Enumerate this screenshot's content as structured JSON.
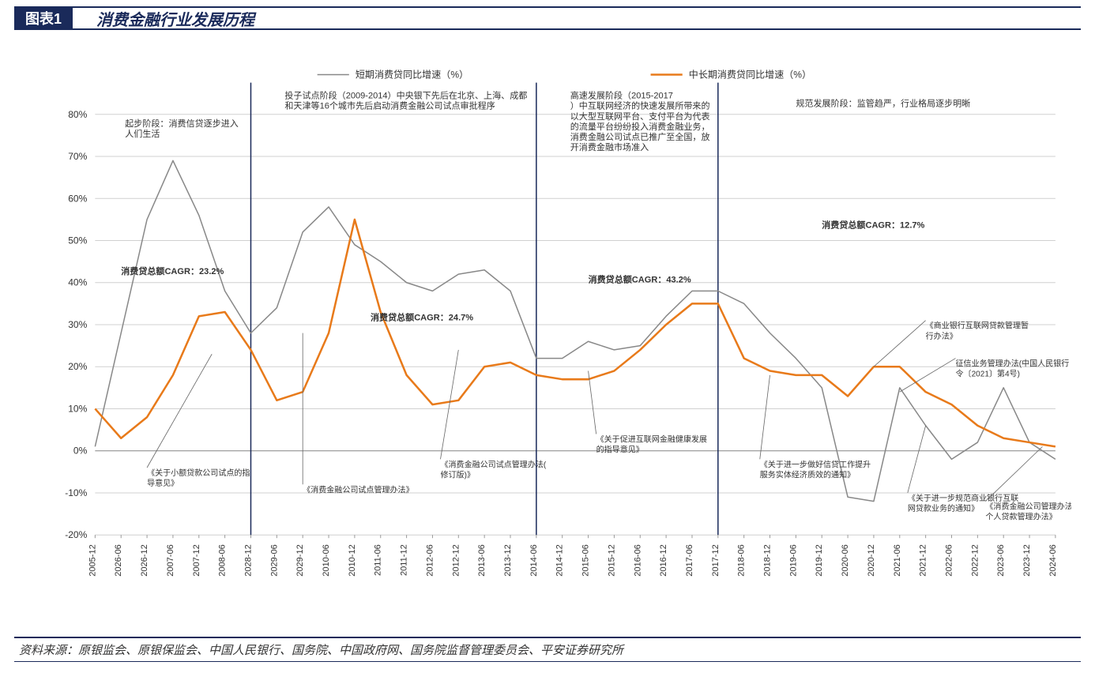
{
  "header": {
    "label": "图表1",
    "title": "消费金融行业发展历程"
  },
  "footer": {
    "source_prefix": "资料来源：",
    "sources": "原银监会、原银保监会、中国人民银行、国务院、中国政府网、国务院监督管理委员会、平安证券研究所"
  },
  "legend": {
    "series1": "短期消费贷同比增速（%）",
    "series2": "中长期消费贷同比增速（%）"
  },
  "chart": {
    "type": "line",
    "ylim": [
      -20,
      80
    ],
    "ytick_step": 10,
    "yticks": [
      "-20%",
      "-10%",
      "0%",
      "10%",
      "20%",
      "30%",
      "40%",
      "50%",
      "60%",
      "70%",
      "80%"
    ],
    "xlabels": [
      "2005-12",
      "2026-06",
      "2026-12",
      "2007-06",
      "2007-12",
      "2008-06",
      "2028-12",
      "2029-06",
      "2029-12",
      "2010-06",
      "2010-12",
      "2011-06",
      "2011-12",
      "2012-06",
      "2012-12",
      "2013-06",
      "2013-12",
      "2014-06",
      "2014-12",
      "2015-06",
      "2015-12",
      "2016-06",
      "2016-12",
      "2017-06",
      "2017-12",
      "2018-06",
      "2018-12",
      "2019-06",
      "2019-12",
      "2020-06",
      "2020-12",
      "2021-06",
      "2021-12",
      "2022-06",
      "2022-12",
      "2023-06",
      "2023-12",
      "2024-06"
    ],
    "series1": {
      "color": "#888888",
      "width": 1.5,
      "values": [
        1,
        28,
        55,
        69,
        56,
        38,
        28,
        34,
        52,
        58,
        49,
        45,
        40,
        38,
        42,
        43,
        38,
        22,
        22,
        26,
        24,
        25,
        32,
        38,
        38,
        35,
        28,
        22,
        15,
        -11,
        -12,
        15,
        6,
        -2,
        2,
        15,
        2,
        -2
      ]
    },
    "series2": {
      "color": "#e87a1a",
      "width": 2.5,
      "values": [
        10,
        3,
        8,
        18,
        32,
        33,
        24,
        12,
        14,
        28,
        55,
        33,
        18,
        11,
        12,
        20,
        21,
        18,
        17,
        17,
        19,
        24,
        30,
        35,
        35,
        22,
        19,
        18,
        18,
        13,
        20,
        20,
        14,
        11,
        6,
        3,
        2,
        1
      ]
    },
    "dividers": [
      6,
      17,
      24
    ],
    "divider_color": "#1a2a5a",
    "grid_color": "#d0d0d0",
    "background": "#ffffff"
  },
  "annotations": {
    "phase1": {
      "title": "起步阶段：消费信贷逐步进入人们生活",
      "cagr": "消费贷总额CAGR：23.2%"
    },
    "phase2": {
      "title": "投子试点阶段（2009-2014）中央银下先后在北京、上海、成都和天津等16个城市先后启动消费金融公司试点审批程序",
      "cagr": "消费贷总额CAGR：24.7%"
    },
    "phase3": {
      "title": "高速发展阶段（2015-2017）中互联网经济的快速发展所带来的以大型互联网平台、支付平台为代表的流量平台纷纷投入消费金融业务，消费金融公司试点已推广至全国，放开消费金融市场准入",
      "cagr": "消费贷总额CAGR：43.2%"
    },
    "phase4": {
      "title": "规范发展阶段：监管趋严，行业格局逐步明晰",
      "cagr": "消费贷总额CAGR：12.7%"
    }
  },
  "callouts": {
    "c1": "《关于小额贷款公司试点的指导意见》",
    "c2": "《消费金融公司试点管理办法》",
    "c3": "《消费金融公司试点管理办法(修订版)》",
    "c4": "《关于促进互联网金融健康发展的指导意见》",
    "c5": "《关于进一步做好信贷工作提升服务实体经济质效的通知》",
    "c6": "《商业银行互联网贷款管理暂行办法》",
    "c7": "征信业务管理办法(中国人民银行令〔2021〕第4号)",
    "c8": "《关于进一步规范商业银行互联网贷款业务的通知》",
    "c9": "《消费金融公司管理办法》、《个人贷款管理办法》"
  }
}
